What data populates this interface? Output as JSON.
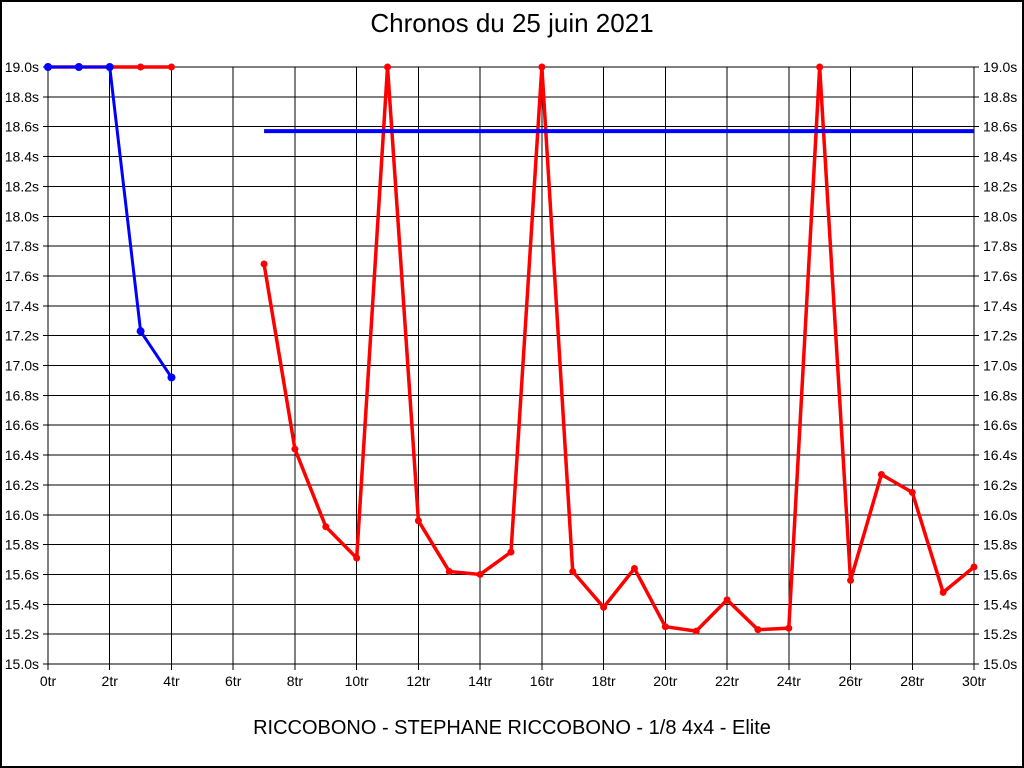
{
  "title": "Chronos du 25 juin 2021",
  "caption": "RICCOBONO - STEPHANE RICCOBONO - 1/8 4x4 - Elite",
  "colors": {
    "lap_series": "#ff0000",
    "average_series": "#0000ff",
    "reference_line": "#0000ff",
    "grid": "#000000",
    "background": "#ffffff"
  },
  "chart_data": {
    "type": "line",
    "title": "Chronos du 25 juin 2021",
    "xlabel": "",
    "ylabel": "",
    "x_unit": "tr",
    "y_unit": "s",
    "xlim": [
      0,
      30
    ],
    "ylim": [
      15.0,
      19.0
    ],
    "x_tick_step": 2,
    "y_tick_step": 0.2,
    "x_ticks": [
      "0tr",
      "2tr",
      "4tr",
      "6tr",
      "8tr",
      "10tr",
      "12tr",
      "14tr",
      "16tr",
      "18tr",
      "20tr",
      "22tr",
      "24tr",
      "26tr",
      "28tr",
      "30tr"
    ],
    "y_ticks": [
      "19.0s",
      "18.8s",
      "18.6s",
      "18.4s",
      "18.2s",
      "18.0s",
      "17.8s",
      "17.6s",
      "17.4s",
      "17.2s",
      "17.0s",
      "16.8s",
      "16.6s",
      "16.4s",
      "16.2s",
      "16.0s",
      "15.8s",
      "15.6s",
      "15.4s",
      "15.2s",
      "15.0s"
    ],
    "grid": true,
    "legend": "none",
    "series": [
      {
        "name": "red-lap-times",
        "color": "#ff0000",
        "line_width": 3.5,
        "markers": true,
        "marker_radius": 3.5,
        "points": [
          [
            0,
            19.0
          ],
          [
            1,
            19.0
          ],
          [
            2,
            19.0
          ],
          [
            3,
            19.0
          ],
          [
            4,
            19.0
          ],
          null,
          [
            7,
            17.68
          ],
          [
            8,
            16.44
          ],
          [
            9,
            15.92
          ],
          [
            10,
            15.71
          ],
          [
            11,
            19.0
          ],
          [
            12,
            15.96
          ],
          [
            13,
            15.62
          ],
          [
            14,
            15.6
          ],
          [
            15,
            15.75
          ],
          [
            16,
            19.0
          ],
          [
            17,
            15.62
          ],
          [
            18,
            15.38
          ],
          [
            19,
            15.64
          ],
          [
            20,
            15.25
          ],
          [
            21,
            15.22
          ],
          [
            22,
            15.43
          ],
          [
            23,
            15.23
          ],
          [
            24,
            15.24
          ],
          [
            25,
            19.0
          ],
          [
            26,
            15.56
          ],
          [
            27,
            16.27
          ],
          [
            28,
            16.15
          ],
          [
            29,
            15.48
          ],
          [
            30,
            15.65
          ]
        ]
      },
      {
        "name": "blue-reference-line",
        "color": "#0000ff",
        "line_width": 4,
        "markers": false,
        "marker_radius": 0,
        "points": [
          [
            7,
            18.57
          ],
          [
            30,
            18.57
          ]
        ]
      },
      {
        "name": "blue-average-start",
        "color": "#0000ff",
        "line_width": 3,
        "markers": true,
        "marker_radius": 4,
        "points": [
          [
            0,
            19.0
          ],
          [
            1,
            19.0
          ],
          [
            2,
            19.0
          ],
          [
            3,
            17.23
          ],
          [
            4,
            16.92
          ]
        ]
      }
    ]
  }
}
